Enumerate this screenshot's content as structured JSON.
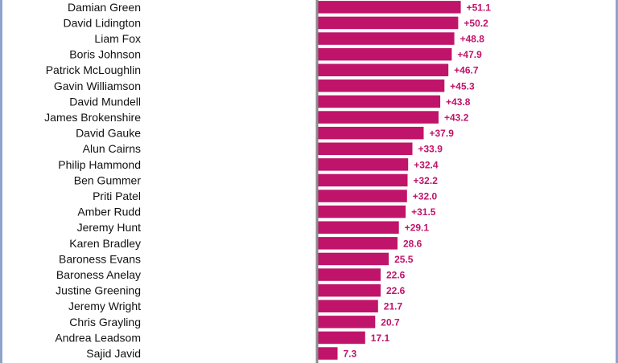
{
  "chart_data": {
    "type": "bar",
    "orientation": "horizontal",
    "title": "",
    "xlabel": "",
    "ylabel": "",
    "grid": false,
    "bar_color": "#c0136a",
    "axis_color": "#8a8a8a",
    "frame_color": "#8ea3cc",
    "label_color": "#c0136a",
    "xlim": [
      0,
      60
    ],
    "categories": [
      "Damian Green",
      "David Lidington",
      "Liam Fox",
      "Boris Johnson",
      "Patrick McLoughlin",
      "Gavin Williamson",
      "David Mundell",
      "James Brokenshire",
      "David Gauke",
      "Alun Cairns",
      "Philip Hammond",
      "Ben Gummer",
      "Priti Patel",
      "Amber Rudd",
      "Jeremy Hunt",
      "Karen Bradley",
      "Baroness Evans",
      "Baroness Anelay",
      "Justine Greening",
      "Jeremy Wright",
      "Chris Grayling",
      "Andrea Leadsom",
      "Sajid Javid"
    ],
    "values": [
      51.1,
      50.2,
      48.8,
      47.9,
      46.7,
      45.3,
      43.8,
      43.2,
      37.9,
      33.9,
      32.4,
      32.2,
      32.0,
      31.5,
      29.1,
      28.6,
      25.5,
      22.6,
      22.6,
      21.7,
      20.7,
      17.1,
      7.3
    ],
    "data_labels": [
      "+51.1",
      "+50.2",
      "+48.8",
      "+47.9",
      "+46.7",
      "+45.3",
      "+43.8",
      "+43.2",
      "+37.9",
      "+33.9",
      "+32.4",
      "+32.2",
      "+32.0",
      "+31.5",
      "+29.1",
      "28.6",
      "25.5",
      "22.6",
      "22.6",
      "21.7",
      "20.7",
      "17.1",
      "7.3"
    ]
  }
}
